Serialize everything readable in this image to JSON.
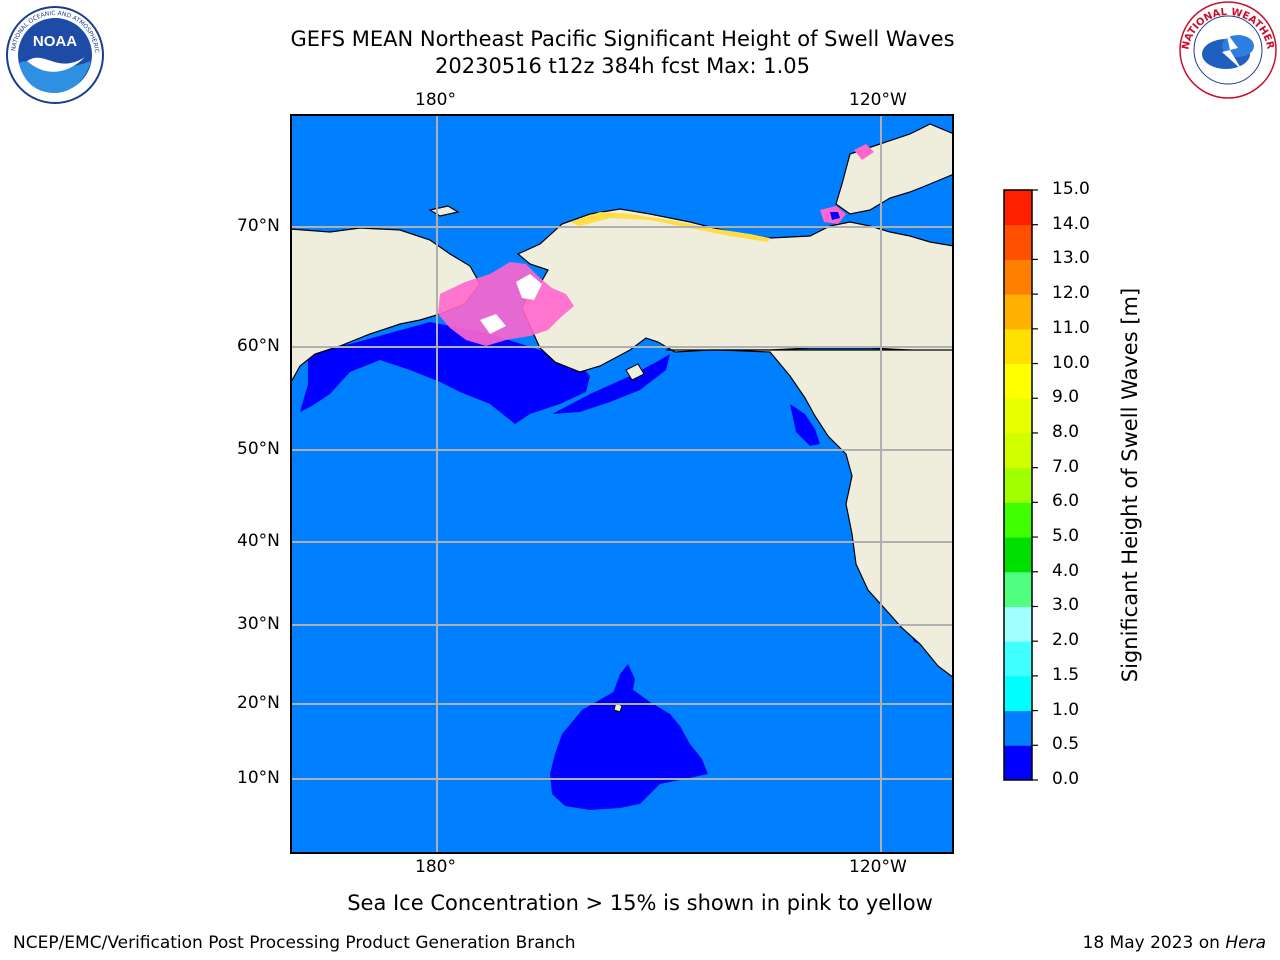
{
  "header": {
    "title_line1": "GEFS MEAN Northeast Pacific Significant Height of Swell Waves",
    "title_line2": "20230516 t12z 384h fcst   Max: 1.05"
  },
  "logos": {
    "left": {
      "icon": "noaa-logo-icon",
      "text": "NOAA",
      "ring_text": "NATIONAL OCEANIC AND ATMOSPHERIC ADMINISTRATION · U.S. DEPARTMENT OF COMMERCE"
    },
    "right": {
      "icon": "nws-logo-icon",
      "ring_text": "NATIONAL WEATHER SERVICE"
    }
  },
  "map": {
    "top_labels": [
      "180°",
      "120°W"
    ],
    "bottom_labels": [
      "180°",
      "120°W"
    ],
    "lat_labels": [
      "70°N",
      "60°N",
      "50°N",
      "40°N",
      "30°N",
      "20°N",
      "10°N"
    ],
    "colors": {
      "ocean": "#0080ff",
      "low_swell": "#0000ff",
      "land": "#efeedd",
      "grid": "#b0b0b0",
      "ice_pink": "#ff66cc",
      "ice_yellow": "#ffdd44"
    }
  },
  "colorbar": {
    "title": "Significant Height of Swell Waves [m]",
    "ticks": [
      "15.0",
      "14.0",
      "13.0",
      "12.0",
      "11.0",
      "10.0",
      "9.0",
      "8.0",
      "7.0",
      "6.0",
      "5.0",
      "4.0",
      "3.0",
      "2.0",
      "1.5",
      "1.0",
      "0.5",
      "0.0"
    ],
    "colors": [
      "#0000ff",
      "#0080ff",
      "#00ffff",
      "#40ffff",
      "#a0ffff",
      "#50ff80",
      "#00e000",
      "#40ff00",
      "#a0ff00",
      "#d0ff00",
      "#e8ff00",
      "#ffff00",
      "#ffe000",
      "#ffb000",
      "#ff8000",
      "#ff5000",
      "#ff2000"
    ]
  },
  "caption": "Sea Ice Concentration > 15% is shown in pink to yellow",
  "footer": {
    "left": "NCEP/EMC/Verification Post Processing Product Generation Branch",
    "right_prefix": "18 May 2023 on ",
    "right_host": "Hera"
  }
}
